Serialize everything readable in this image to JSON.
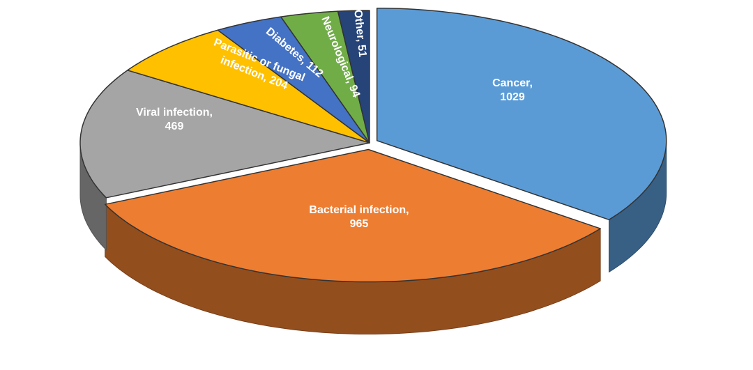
{
  "chart_data": {
    "type": "pie3d",
    "categories": [
      "Cancer",
      "Bacterial infection",
      "Viral infection",
      "Parasitic or fungal infection",
      "Diabetes",
      "Neurological",
      "Other"
    ],
    "values": [
      1029,
      965,
      469,
      204,
      112,
      94,
      51
    ],
    "value_labels": [
      [
        "Cancer,",
        "1029"
      ],
      [
        "Bacterial infection,",
        "965"
      ],
      [
        "Viral infection,",
        "469"
      ],
      [
        "Parasitic or fungal",
        "infection, 204"
      ],
      [
        "Diabetes, 112"
      ],
      [
        "Neurological, 94"
      ],
      [
        "Other, 51"
      ]
    ],
    "colors": [
      "#5b9bd5",
      "#ed7d31",
      "#a5a5a5",
      "#ffc000",
      "#4472c4",
      "#70ad47",
      "#264478"
    ]
  }
}
